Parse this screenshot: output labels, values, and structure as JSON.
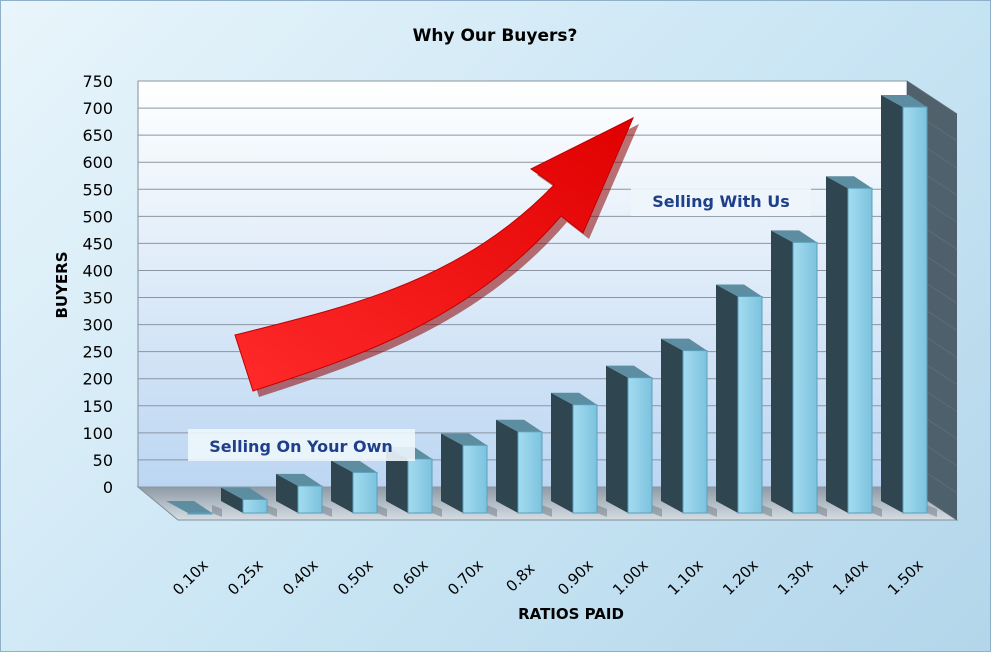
{
  "chart_data": {
    "type": "bar",
    "title": "Why Our Buyers?",
    "xlabel": "RATIOS PAID",
    "ylabel": "BUYERS",
    "categories": [
      "0.10x",
      "0.25x",
      "0.40x",
      "0.50x",
      "0.60x",
      "0.70x",
      "0.8x",
      "0.90x",
      "1.00x",
      "1.10x",
      "1.20x",
      "1.30x",
      "1.40x",
      "1.50x"
    ],
    "values": [
      0,
      25,
      50,
      75,
      100,
      125,
      150,
      200,
      250,
      300,
      400,
      500,
      600,
      750
    ],
    "ylim": [
      0,
      750
    ],
    "yticks": [
      0,
      50,
      100,
      150,
      200,
      250,
      300,
      350,
      400,
      450,
      500,
      550,
      600,
      650,
      700,
      750
    ],
    "grid": true,
    "legend": "none",
    "annotations": [
      "Selling On Your Own",
      "Selling With Us"
    ],
    "colors": {
      "bar_front": "#8fd0e8",
      "bar_side": "#2f4650",
      "bar_top": "#5c8da0",
      "arrow": "#e60000"
    }
  }
}
